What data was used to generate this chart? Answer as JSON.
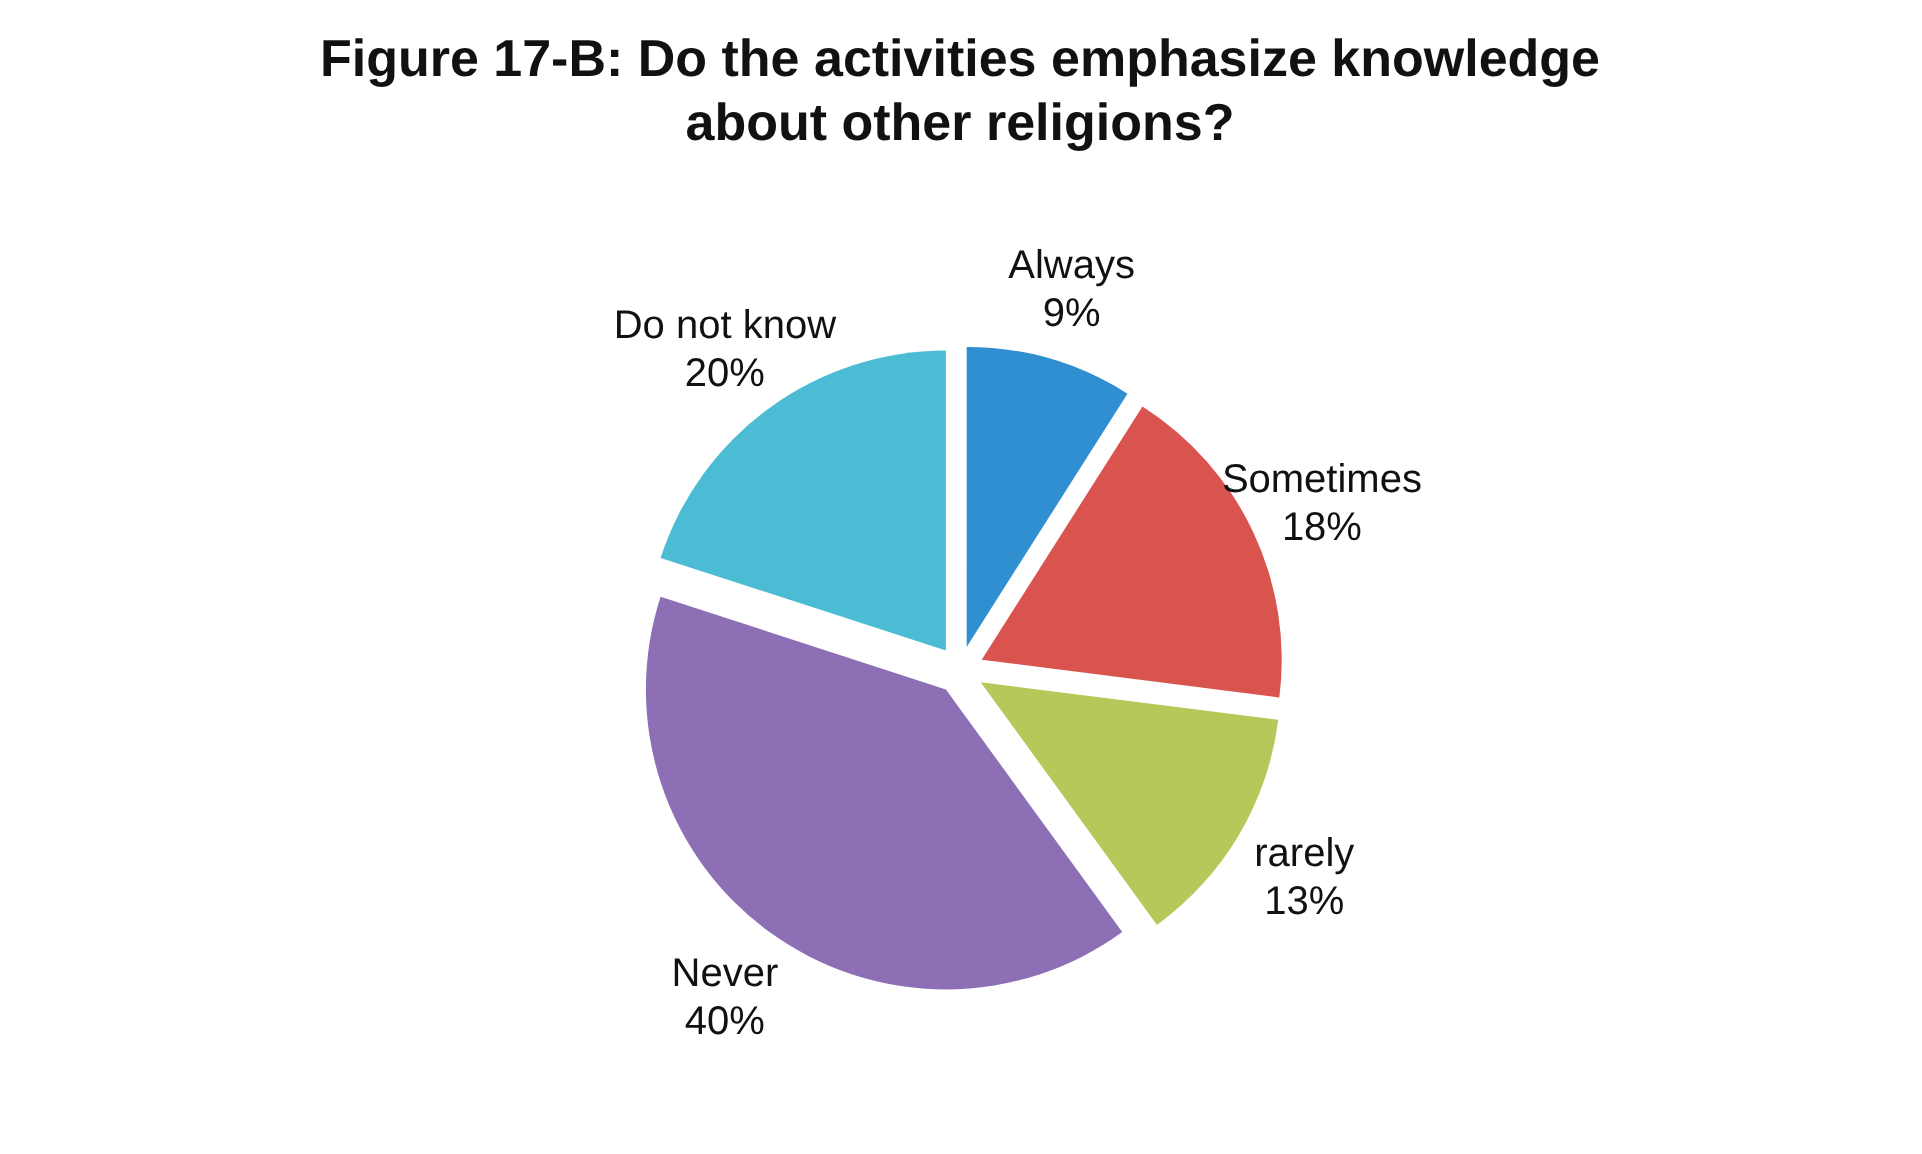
{
  "chart_data": {
    "type": "pie",
    "title": "Figure 17-B: Do the activities emphasize knowledge about other religions?",
    "categories": [
      "Always",
      "Sometimes",
      "rarely",
      "Never",
      "Do not know"
    ],
    "values": [
      9,
      18,
      13,
      40,
      20
    ],
    "value_labels": [
      "9%",
      "18%",
      "13%",
      "40%",
      "20%"
    ],
    "colors": [
      "#2f8fd0",
      "#d9534f",
      "#b5c95a",
      "#8c6fb5",
      "#4bbcd4"
    ]
  }
}
